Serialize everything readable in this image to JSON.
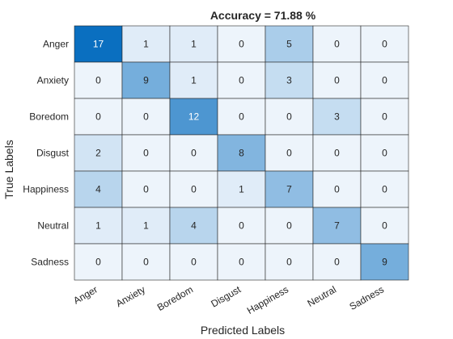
{
  "chart_data": {
    "type": "heatmap",
    "title": "Accuracy = 71.88 %",
    "xlabel": "Predicted Labels",
    "ylabel": "True Labels",
    "x_categories": [
      "Anger",
      "Anxiety",
      "Boredom",
      "Disgust",
      "Happiness",
      "Neutral",
      "Sadness"
    ],
    "y_categories": [
      "Anger",
      "Anxiety",
      "Boredom",
      "Disgust",
      "Happiness",
      "Neutral",
      "Sadness"
    ],
    "values": [
      [
        17,
        1,
        1,
        0,
        5,
        0,
        0
      ],
      [
        0,
        9,
        1,
        0,
        3,
        0,
        0
      ],
      [
        0,
        0,
        12,
        0,
        0,
        3,
        0
      ],
      [
        2,
        0,
        0,
        8,
        0,
        0,
        0
      ],
      [
        4,
        0,
        0,
        1,
        7,
        0,
        0
      ],
      [
        1,
        1,
        4,
        0,
        0,
        7,
        0
      ],
      [
        0,
        0,
        0,
        0,
        0,
        0,
        9
      ]
    ],
    "grid": true,
    "colormap": {
      "low": "#edf4fb",
      "high": "#0a6fc0",
      "text_dark": "#262626",
      "text_light": "#ffffff"
    }
  }
}
